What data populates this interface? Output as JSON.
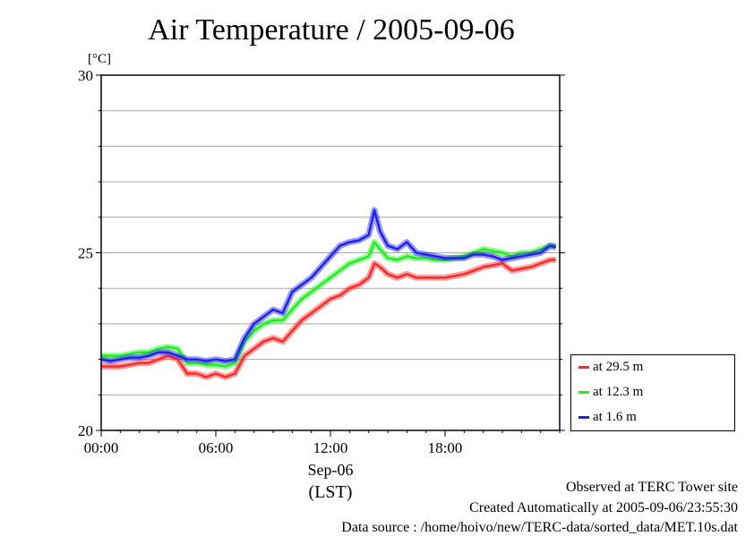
{
  "header": {
    "title": "Air Temperature / 2005-09-06"
  },
  "footer": {
    "line1": "Observed at TERC Tower site",
    "line2": "Created Automatically at 2005-09-06/23:55:30",
    "line3": "Data source : /home/hoivo/new/TERC-data/sorted_data/MET.10s.dat"
  },
  "chart_data": {
    "type": "line",
    "title": "Air Temperature / 2005-09-06",
    "ylabel": "[°C]",
    "xlabel_line1": "Sep-06",
    "xlabel_line2": "(LST)",
    "ylim": [
      20,
      30
    ],
    "xlim": [
      0,
      24
    ],
    "x_unit": "hour (LST)",
    "y_ticks": [
      20,
      25,
      30
    ],
    "x_ticks": [
      0,
      6,
      12,
      18
    ],
    "x_tick_labels": [
      "00:00",
      "06:00",
      "12:00",
      "18:00"
    ],
    "grid": true,
    "legend_position": "right-bottom",
    "x": [
      0,
      0.5,
      1,
      1.5,
      2,
      2.5,
      3,
      3.5,
      4,
      4.5,
      5,
      5.5,
      6,
      6.5,
      7,
      7.5,
      8,
      8.5,
      9,
      9.5,
      10,
      10.5,
      11,
      11.5,
      12,
      12.5,
      13,
      13.5,
      14,
      14.3,
      14.6,
      15,
      15.5,
      16,
      16.5,
      17,
      17.5,
      18,
      18.5,
      19,
      19.5,
      20,
      20.5,
      21,
      21.5,
      22,
      22.5,
      23,
      23.5,
      23.8
    ],
    "series": [
      {
        "name": "at 29.5 m",
        "color": "#ff2a2a",
        "values": [
          21.8,
          21.8,
          21.8,
          21.85,
          21.9,
          21.9,
          22.0,
          22.1,
          22.0,
          21.6,
          21.6,
          21.5,
          21.6,
          21.5,
          21.6,
          22.1,
          22.3,
          22.5,
          22.6,
          22.5,
          22.8,
          23.1,
          23.3,
          23.5,
          23.7,
          23.8,
          24.0,
          24.1,
          24.3,
          24.7,
          24.6,
          24.4,
          24.3,
          24.4,
          24.3,
          24.3,
          24.3,
          24.3,
          24.35,
          24.4,
          24.5,
          24.6,
          24.65,
          24.7,
          24.5,
          24.55,
          24.6,
          24.7,
          24.8,
          24.8
        ]
      },
      {
        "name": "at 12.3 m",
        "color": "#22ee22",
        "values": [
          22.1,
          22.1,
          22.1,
          22.15,
          22.2,
          22.2,
          22.3,
          22.35,
          22.3,
          21.9,
          21.9,
          21.85,
          21.85,
          21.8,
          21.9,
          22.5,
          22.8,
          23.0,
          23.1,
          23.1,
          23.4,
          23.7,
          23.9,
          24.1,
          24.3,
          24.5,
          24.7,
          24.8,
          24.9,
          25.3,
          25.1,
          24.85,
          24.8,
          24.9,
          24.85,
          24.85,
          24.8,
          24.8,
          24.85,
          24.9,
          25.0,
          25.1,
          25.05,
          25.0,
          24.9,
          25.0,
          25.0,
          25.1,
          25.2,
          25.2
        ]
      },
      {
        "name": "at 1.6 m",
        "color": "#2222ee",
        "values": [
          22.0,
          21.95,
          22.0,
          22.05,
          22.05,
          22.1,
          22.2,
          22.2,
          22.1,
          22.0,
          22.0,
          21.95,
          22.0,
          21.95,
          22.0,
          22.6,
          23.0,
          23.2,
          23.4,
          23.3,
          23.9,
          24.1,
          24.3,
          24.6,
          24.9,
          25.2,
          25.3,
          25.35,
          25.5,
          26.2,
          25.6,
          25.2,
          25.1,
          25.3,
          25.0,
          24.95,
          24.9,
          24.85,
          24.85,
          24.85,
          24.95,
          24.95,
          24.9,
          24.8,
          24.85,
          24.9,
          24.95,
          25.0,
          25.2,
          25.15
        ]
      }
    ]
  }
}
